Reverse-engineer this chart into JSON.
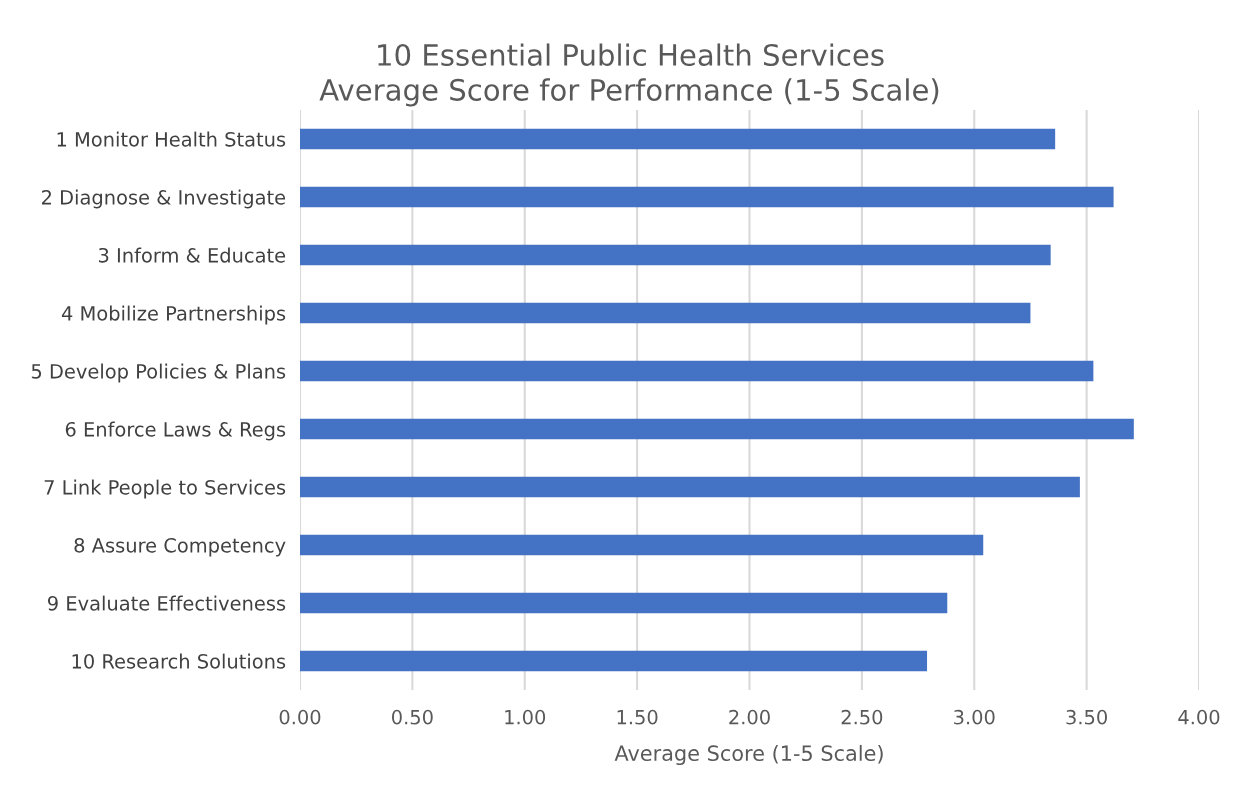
{
  "chart_data": {
    "type": "bar",
    "orientation": "horizontal",
    "title": "10 Essential Public Health Services\nAverage Score for Performance (1-5 Scale)",
    "xlabel": "Average Score (1-5 Scale)",
    "categories": [
      "1 Monitor Health Status",
      "2 Diagnose & Investigate",
      "3 Inform & Educate",
      "4 Mobilize Partnerships",
      "5 Develop Policies & Plans",
      "6 Enforce Laws & Regs",
      "7 Link People to Services",
      "8 Assure Competency",
      "9 Evaluate Effectiveness",
      "10 Research Solutions"
    ],
    "values": [
      3.36,
      3.62,
      3.34,
      3.25,
      3.53,
      3.71,
      3.47,
      3.04,
      2.88,
      2.79
    ],
    "color": "#4472c4",
    "xlim": [
      0,
      4
    ],
    "xticks": [
      {
        "value": 0,
        "label": "0.00"
      },
      {
        "value": 0.5,
        "label": "0.50"
      },
      {
        "value": 1,
        "label": "1.00"
      },
      {
        "value": 1.5,
        "label": "1.50"
      },
      {
        "value": 2,
        "label": "2.00"
      },
      {
        "value": 2.5,
        "label": "2.50"
      },
      {
        "value": 3,
        "label": "3.00"
      },
      {
        "value": 3.5,
        "label": "3.50"
      },
      {
        "value": 4,
        "label": "4.00"
      }
    ],
    "grid": "x"
  }
}
